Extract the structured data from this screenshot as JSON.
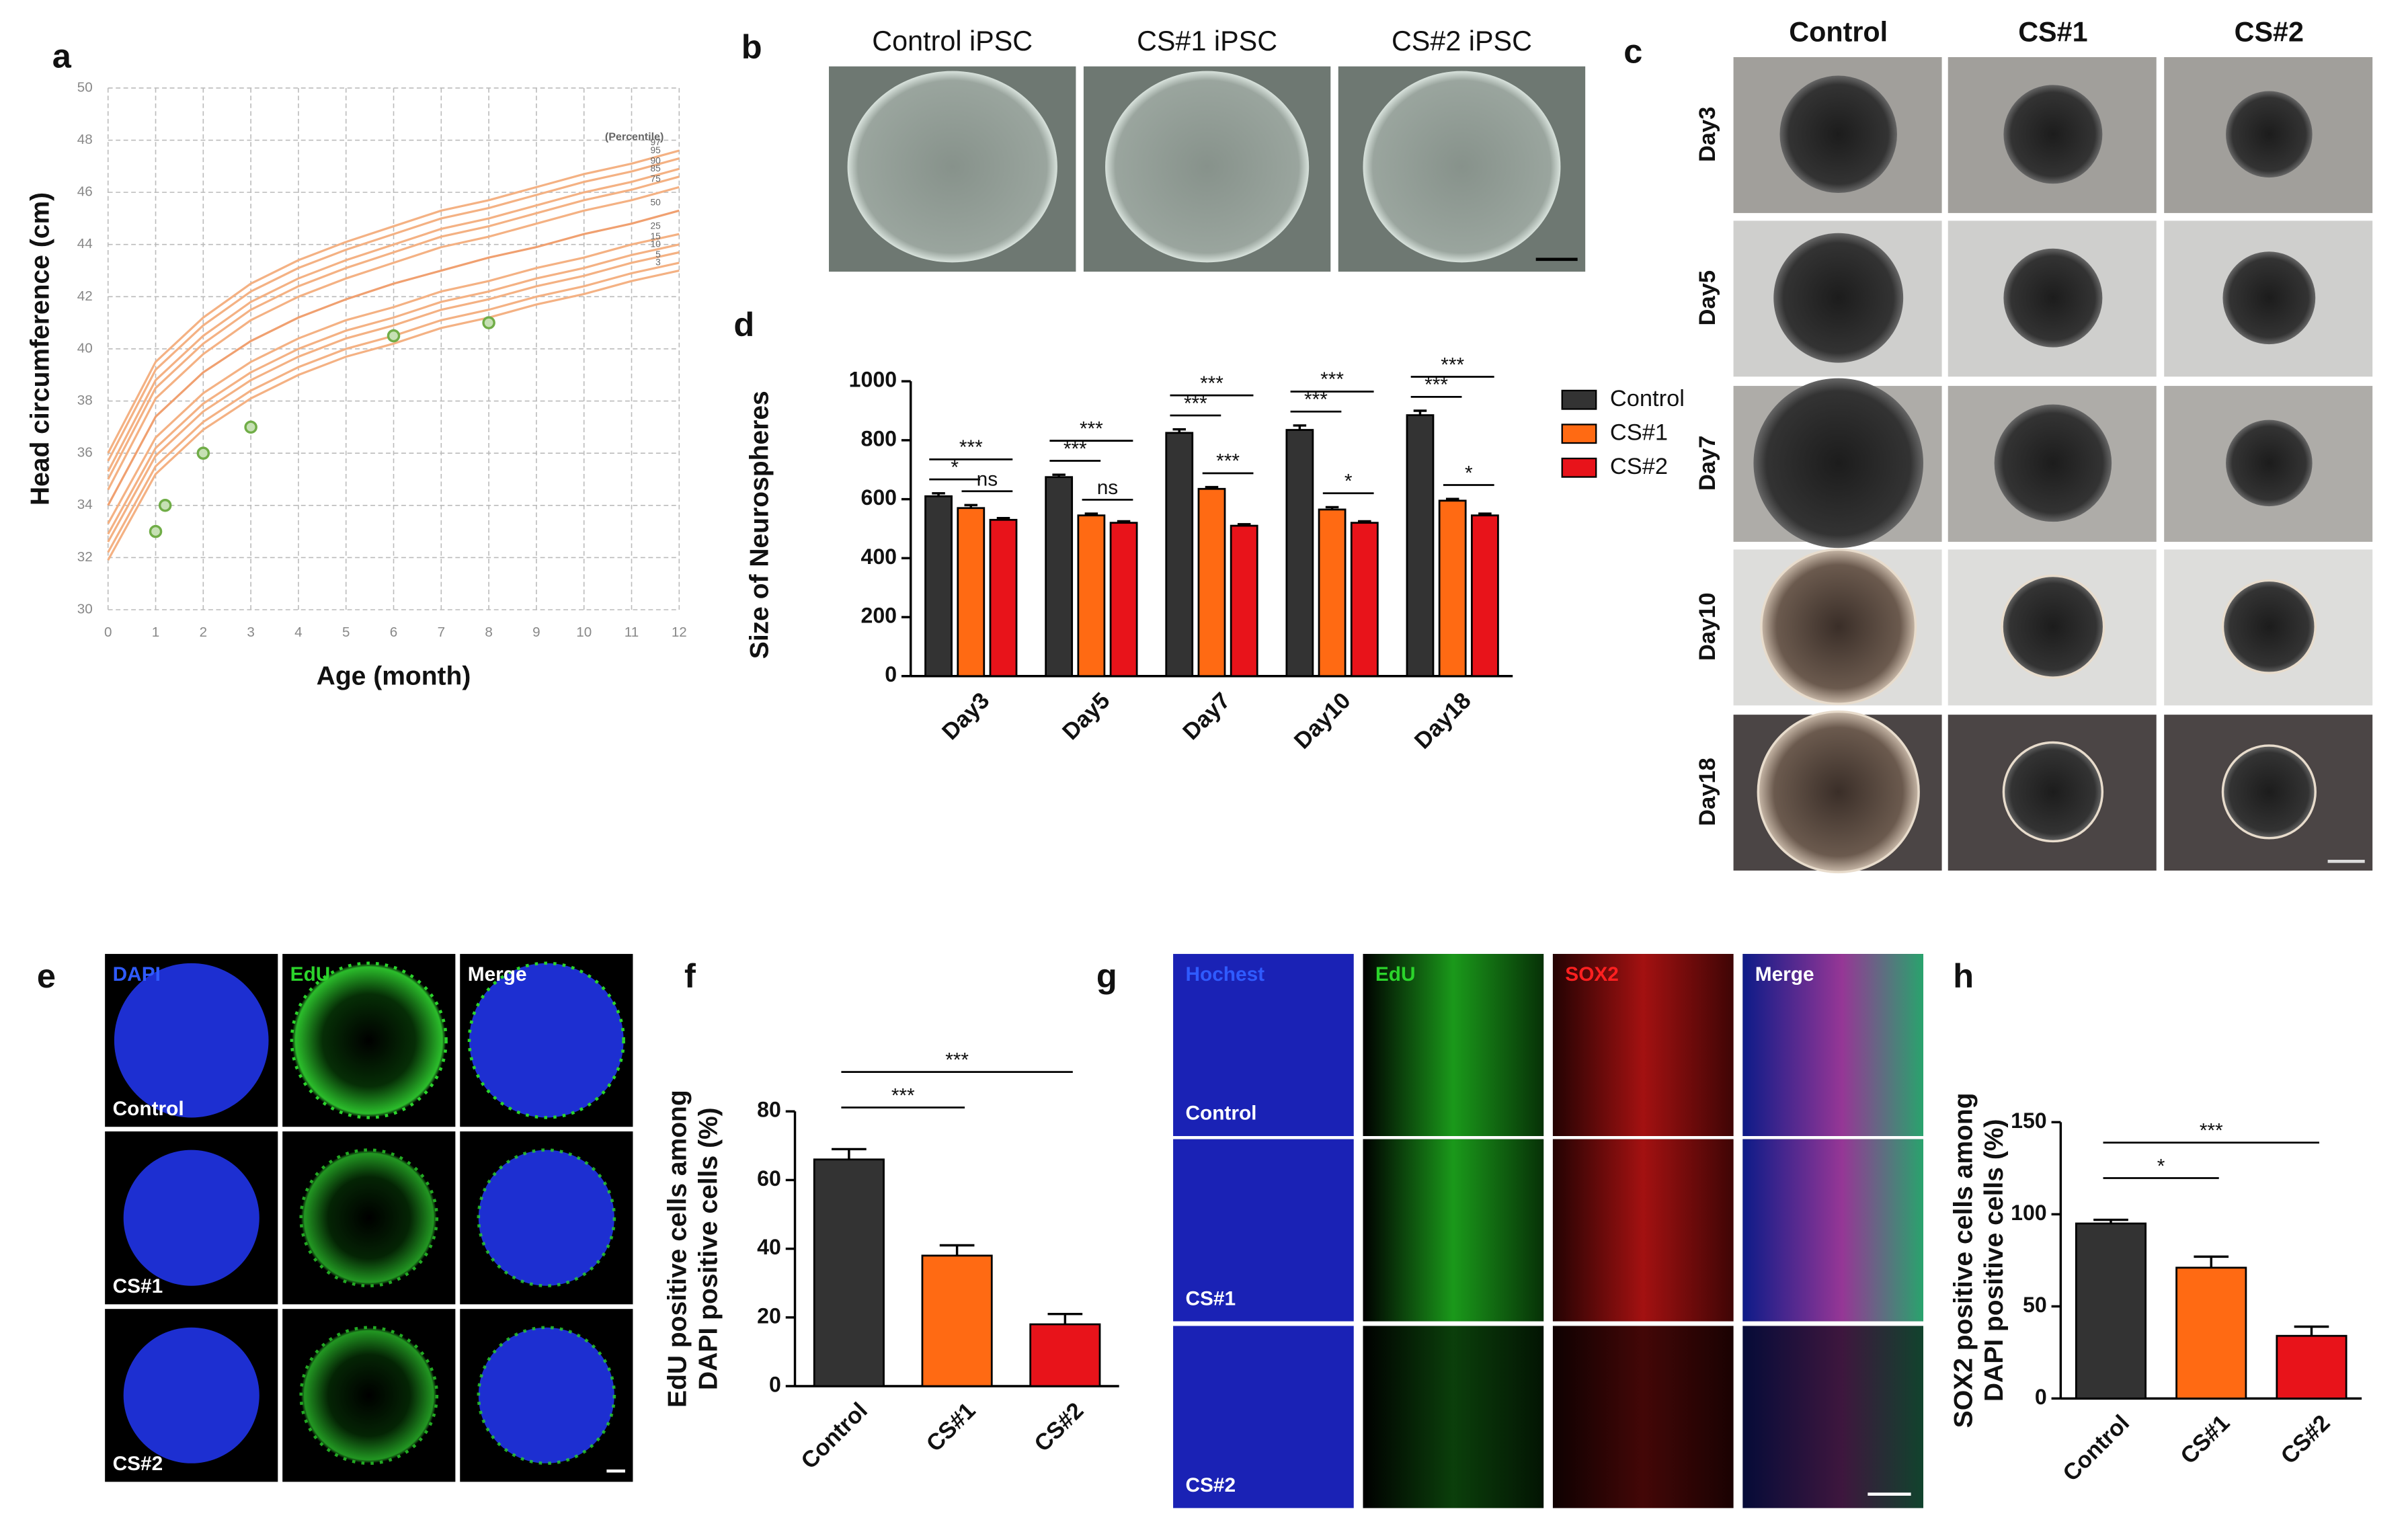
{
  "panel_labels": [
    "a",
    "b",
    "c",
    "d",
    "e",
    "f",
    "g",
    "h"
  ],
  "panel_b": {
    "columns": [
      "Control  iPSC",
      "CS#1 iPSC",
      "CS#2 iPSC"
    ]
  },
  "panel_c": {
    "columns": [
      "Control",
      "CS#1",
      "CS#2"
    ],
    "rows": [
      "Day3",
      "Day5",
      "Day7",
      "Day10",
      "Day18"
    ]
  },
  "panel_e": {
    "columns": [
      "DAPI",
      "EdU",
      "Merge"
    ],
    "rows": [
      "Control",
      "CS#1",
      "CS#2"
    ]
  },
  "panel_g": {
    "columns": [
      "Hochest",
      "EdU",
      "SOX2",
      "Merge"
    ],
    "rows": [
      "Control",
      "CS#1",
      "CS#2"
    ]
  },
  "chart_data": [
    {
      "type": "line",
      "y_label": "Head circumference (cm)",
      "x_label": "Age (month)",
      "legend_title": "(Percentile)",
      "x": [
        0,
        1,
        2,
        3,
        4,
        5,
        6,
        7,
        8,
        9,
        10,
        11,
        12
      ],
      "xlim": [
        0,
        12
      ],
      "xticks": [
        0,
        1,
        2,
        3,
        4,
        5,
        6,
        7,
        8,
        9,
        10,
        11,
        12
      ],
      "ylim": [
        30,
        50
      ],
      "yticks": [
        30,
        32,
        34,
        36,
        38,
        40,
        42,
        44,
        46,
        48,
        50
      ],
      "grid": true,
      "series": [
        {
          "name": "97",
          "color": "#f4b183",
          "values": [
            36.0,
            39.5,
            41.2,
            42.5,
            43.4,
            44.1,
            44.7,
            45.3,
            45.7,
            46.2,
            46.7,
            47.1,
            47.6
          ]
        },
        {
          "name": "95",
          "color": "#f4b183",
          "values": [
            35.7,
            39.2,
            40.9,
            42.2,
            43.1,
            43.8,
            44.4,
            45.0,
            45.4,
            45.9,
            46.4,
            46.8,
            47.3
          ]
        },
        {
          "name": "90",
          "color": "#f4b183",
          "values": [
            35.3,
            38.8,
            40.5,
            41.8,
            42.7,
            43.4,
            44.0,
            44.6,
            45.0,
            45.5,
            46.0,
            46.4,
            46.9
          ]
        },
        {
          "name": "85",
          "color": "#f4b183",
          "values": [
            35.0,
            38.5,
            40.2,
            41.5,
            42.4,
            43.1,
            43.7,
            44.3,
            44.7,
            45.2,
            45.7,
            46.1,
            46.6
          ]
        },
        {
          "name": "75",
          "color": "#f4b183",
          "values": [
            34.6,
            38.1,
            39.8,
            41.1,
            42.0,
            42.7,
            43.3,
            43.9,
            44.3,
            44.8,
            45.3,
            45.7,
            46.2
          ]
        },
        {
          "name": "50",
          "color": "#f0a070",
          "values": [
            34.0,
            37.4,
            39.1,
            40.3,
            41.2,
            41.9,
            42.5,
            43.0,
            43.5,
            43.9,
            44.4,
            44.8,
            45.3
          ]
        },
        {
          "name": "25",
          "color": "#f4b183",
          "values": [
            33.3,
            36.6,
            38.3,
            39.5,
            40.4,
            41.1,
            41.6,
            42.2,
            42.6,
            43.1,
            43.5,
            44.0,
            44.4
          ]
        },
        {
          "name": "15",
          "color": "#f4b183",
          "values": [
            32.9,
            36.2,
            37.9,
            39.1,
            40.0,
            40.7,
            41.2,
            41.8,
            42.2,
            42.7,
            43.1,
            43.6,
            44.0
          ]
        },
        {
          "name": "10",
          "color": "#f4b183",
          "values": [
            32.6,
            35.9,
            37.6,
            38.8,
            39.7,
            40.4,
            40.9,
            41.5,
            41.9,
            42.4,
            42.8,
            43.3,
            43.7
          ]
        },
        {
          "name": "5",
          "color": "#f4b183",
          "values": [
            32.2,
            35.5,
            37.2,
            38.4,
            39.3,
            40.0,
            40.5,
            41.1,
            41.5,
            42.0,
            42.4,
            42.9,
            43.3
          ]
        },
        {
          "name": "3",
          "color": "#f4b183",
          "values": [
            31.9,
            35.2,
            36.9,
            38.1,
            39.0,
            39.7,
            40.2,
            40.8,
            41.2,
            41.7,
            42.1,
            42.6,
            43.0
          ]
        }
      ],
      "points": {
        "x": [
          1,
          1.2,
          2,
          3,
          6,
          8
        ],
        "values": [
          33,
          34,
          36,
          37,
          40.5,
          41
        ],
        "color": "#70ad47"
      }
    },
    {
      "type": "bar",
      "y_label": "Size of Neurospheres",
      "categories": [
        "Day3",
        "Day5",
        "Day7",
        "Day10",
        "Day18"
      ],
      "series": [
        {
          "name": "Control",
          "color": "#333333",
          "values": [
            610,
            675,
            825,
            835,
            885
          ],
          "errors": [
            10,
            8,
            12,
            15,
            15
          ]
        },
        {
          "name": "CS#1",
          "color": "#ff6a13",
          "values": [
            570,
            545,
            635,
            565,
            595
          ],
          "errors": [
            10,
            6,
            6,
            8,
            6
          ]
        },
        {
          "name": "CS#2",
          "color": "#e8131a",
          "values": [
            530,
            520,
            510,
            520,
            545
          ],
          "errors": [
            6,
            5,
            5,
            5,
            6
          ]
        }
      ],
      "ylim": [
        0,
        1000
      ],
      "yticks": [
        0,
        200,
        400,
        600,
        800,
        1000
      ],
      "significance": [
        [
          {
            "between": [
              0,
              1
            ],
            "label": "*"
          },
          {
            "between": [
              1,
              2
            ],
            "label": "ns"
          },
          {
            "between": [
              0,
              2
            ],
            "label": "***"
          }
        ],
        [
          {
            "between": [
              0,
              1
            ],
            "label": "***"
          },
          {
            "between": [
              1,
              2
            ],
            "label": "ns"
          },
          {
            "between": [
              0,
              2
            ],
            "label": "***"
          }
        ],
        [
          {
            "between": [
              0,
              1
            ],
            "label": "***"
          },
          {
            "between": [
              1,
              2
            ],
            "label": "***"
          },
          {
            "between": [
              0,
              2
            ],
            "label": "***"
          }
        ],
        [
          {
            "between": [
              0,
              1
            ],
            "label": "***"
          },
          {
            "between": [
              1,
              2
            ],
            "label": "*"
          },
          {
            "between": [
              0,
              2
            ],
            "label": "***"
          }
        ],
        [
          {
            "between": [
              0,
              1
            ],
            "label": "***"
          },
          {
            "between": [
              1,
              2
            ],
            "label": "*"
          },
          {
            "between": [
              0,
              2
            ],
            "label": "***"
          }
        ]
      ]
    },
    {
      "type": "bar",
      "y_label": [
        "EdU positive cells among",
        "DAPI positive cells (%)"
      ],
      "categories": [
        "Control",
        "CS#1",
        "CS#2"
      ],
      "values": [
        66,
        38,
        18
      ],
      "errors": [
        3,
        3,
        3
      ],
      "colors": [
        "#333333",
        "#ff6a13",
        "#e8131a"
      ],
      "ylim": [
        0,
        80
      ],
      "yticks": [
        0,
        20,
        40,
        60,
        80
      ],
      "significance": [
        {
          "between": [
            0,
            1
          ],
          "label": "***"
        },
        {
          "between": [
            0,
            2
          ],
          "label": "***"
        }
      ]
    },
    {
      "type": "bar",
      "y_label": [
        "SOX2 positive cells among",
        "DAPI positive cells (%)"
      ],
      "categories": [
        "Control",
        "CS#1",
        "CS#2"
      ],
      "values": [
        95,
        71,
        34
      ],
      "errors": [
        2,
        6,
        5
      ],
      "colors": [
        "#333333",
        "#ff6a13",
        "#e8131a"
      ],
      "ylim": [
        0,
        150
      ],
      "yticks": [
        0,
        50,
        100,
        150
      ],
      "significance": [
        {
          "between": [
            0,
            1
          ],
          "label": "*"
        },
        {
          "between": [
            0,
            2
          ],
          "label": "***"
        }
      ]
    }
  ]
}
